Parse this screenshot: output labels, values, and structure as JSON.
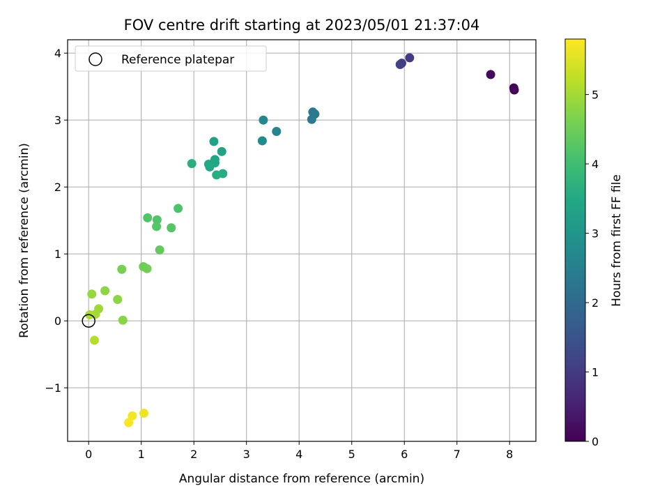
{
  "chart_data": {
    "type": "scatter",
    "title": "FOV centre drift starting at 2023/05/01 21:37:04",
    "xlabel": "Angular distance from reference (arcmin)",
    "ylabel": "Rotation from reference (arcmin)",
    "xlim": [
      -0.4,
      8.5
    ],
    "ylim": [
      -1.8,
      4.2
    ],
    "xticks": [
      0,
      1,
      2,
      3,
      4,
      5,
      6,
      7,
      8
    ],
    "yticks": [
      -1,
      0,
      1,
      2,
      3,
      4
    ],
    "xtick_labels": [
      "0",
      "1",
      "2",
      "3",
      "4",
      "5",
      "6",
      "7",
      "8"
    ],
    "ytick_labels": [
      "−1",
      "0",
      "1",
      "2",
      "3",
      "4"
    ],
    "grid": true,
    "legend": {
      "placement": "top-left",
      "entries": [
        {
          "label": "Reference platepar",
          "marker": "open-circle"
        }
      ]
    },
    "reference_point": {
      "x": 0,
      "y": 0
    },
    "colorbar": {
      "label": "Hours from first FF file",
      "colormap": "viridis",
      "range": [
        0,
        5.8
      ],
      "ticks": [
        0,
        1,
        2,
        3,
        4,
        5
      ],
      "tick_labels": [
        "0",
        "1",
        "2",
        "3",
        "4",
        "5"
      ]
    },
    "points": [
      {
        "x": 8.09,
        "y": 3.45,
        "c": 0.05
      },
      {
        "x": 8.08,
        "y": 3.48,
        "c": 0.1
      },
      {
        "x": 7.64,
        "y": 3.68,
        "c": 0.15
      },
      {
        "x": 6.1,
        "y": 3.93,
        "c": 1.0
      },
      {
        "x": 5.95,
        "y": 3.85,
        "c": 1.05
      },
      {
        "x": 5.92,
        "y": 3.83,
        "c": 1.1
      },
      {
        "x": 4.3,
        "y": 3.09,
        "c": 2.3
      },
      {
        "x": 4.26,
        "y": 3.12,
        "c": 2.35
      },
      {
        "x": 4.24,
        "y": 3.01,
        "c": 2.4
      },
      {
        "x": 3.57,
        "y": 2.83,
        "c": 2.6
      },
      {
        "x": 3.32,
        "y": 3.0,
        "c": 2.7
      },
      {
        "x": 3.3,
        "y": 2.69,
        "c": 2.75
      },
      {
        "x": 2.38,
        "y": 2.68,
        "c": 3.3
      },
      {
        "x": 2.53,
        "y": 2.53,
        "c": 3.35
      },
      {
        "x": 2.4,
        "y": 2.41,
        "c": 3.4
      },
      {
        "x": 2.4,
        "y": 2.36,
        "c": 3.45
      },
      {
        "x": 2.28,
        "y": 2.34,
        "c": 3.5
      },
      {
        "x": 2.3,
        "y": 2.3,
        "c": 3.5
      },
      {
        "x": 2.55,
        "y": 2.2,
        "c": 3.55
      },
      {
        "x": 2.43,
        "y": 2.18,
        "c": 3.6
      },
      {
        "x": 1.96,
        "y": 2.35,
        "c": 3.65
      },
      {
        "x": 1.7,
        "y": 1.68,
        "c": 4.15
      },
      {
        "x": 1.12,
        "y": 1.54,
        "c": 4.2
      },
      {
        "x": 1.3,
        "y": 1.51,
        "c": 4.2
      },
      {
        "x": 1.29,
        "y": 1.41,
        "c": 4.25
      },
      {
        "x": 1.57,
        "y": 1.39,
        "c": 4.25
      },
      {
        "x": 1.35,
        "y": 1.06,
        "c": 4.4
      },
      {
        "x": 1.04,
        "y": 0.81,
        "c": 4.5
      },
      {
        "x": 1.11,
        "y": 0.78,
        "c": 4.55
      },
      {
        "x": 0.63,
        "y": 0.77,
        "c": 4.6
      },
      {
        "x": 0.31,
        "y": 0.45,
        "c": 4.8
      },
      {
        "x": 0.55,
        "y": 0.32,
        "c": 4.8
      },
      {
        "x": 0.06,
        "y": 0.4,
        "c": 4.9
      },
      {
        "x": 0.65,
        "y": 0.01,
        "c": 4.75
      },
      {
        "x": 0.19,
        "y": 0.18,
        "c": 4.95
      },
      {
        "x": 0.13,
        "y": 0.1,
        "c": 5.0
      },
      {
        "x": 0.02,
        "y": 0.09,
        "c": 5.05
      },
      {
        "x": 0.11,
        "y": -0.29,
        "c": 5.15
      },
      {
        "x": 1.05,
        "y": -1.38,
        "c": 5.65
      },
      {
        "x": 0.83,
        "y": -1.42,
        "c": 5.7
      },
      {
        "x": 0.76,
        "y": -1.52,
        "c": 5.75
      }
    ]
  }
}
